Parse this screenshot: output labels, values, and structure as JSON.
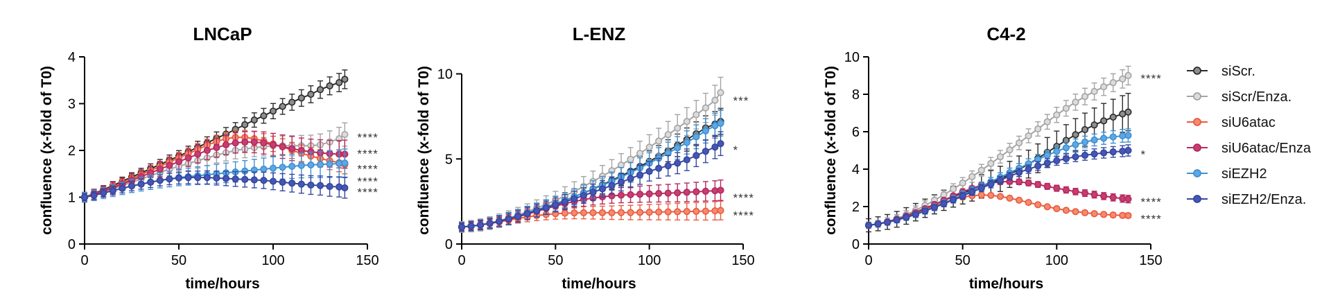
{
  "chart_data": [
    {
      "type": "line",
      "title": "LNCaP",
      "xlabel": "time/hours",
      "ylabel": "confluence (x-fold of T0)",
      "xlim": [
        0,
        150
      ],
      "ylim": [
        0,
        4
      ],
      "xticks": [
        0,
        50,
        100,
        150
      ],
      "yticks": [
        0,
        1,
        2,
        3,
        4
      ],
      "x": [
        0,
        5,
        10,
        15,
        20,
        25,
        30,
        35,
        40,
        45,
        50,
        55,
        60,
        65,
        70,
        75,
        80,
        85,
        90,
        95,
        100,
        105,
        110,
        115,
        120,
        125,
        130,
        135,
        138
      ],
      "series": [
        {
          "name": "siScr.",
          "values": [
            1.0,
            1.08,
            1.16,
            1.25,
            1.34,
            1.43,
            1.52,
            1.61,
            1.7,
            1.79,
            1.88,
            1.97,
            2.07,
            2.16,
            2.26,
            2.35,
            2.45,
            2.55,
            2.65,
            2.74,
            2.84,
            2.94,
            3.03,
            3.12,
            3.2,
            3.3,
            3.38,
            3.45,
            3.52
          ],
          "error": 0.2
        },
        {
          "name": "siScr/Enza.",
          "values": [
            1.0,
            1.05,
            1.11,
            1.18,
            1.25,
            1.32,
            1.39,
            1.46,
            1.53,
            1.6,
            1.66,
            1.72,
            1.78,
            1.84,
            1.9,
            1.95,
            2.0,
            2.03,
            2.06,
            2.08,
            2.1,
            2.1,
            2.1,
            2.1,
            2.1,
            2.12,
            2.18,
            2.25,
            2.34
          ],
          "error": 0.25
        },
        {
          "name": "siU6atac",
          "values": [
            1.0,
            1.07,
            1.14,
            1.22,
            1.3,
            1.39,
            1.48,
            1.57,
            1.66,
            1.75,
            1.84,
            1.93,
            2.02,
            2.11,
            2.19,
            2.25,
            2.28,
            2.28,
            2.25,
            2.2,
            2.14,
            2.08,
            2.0,
            1.94,
            1.88,
            1.83,
            1.78,
            1.74,
            1.7
          ],
          "error": 0.2
        },
        {
          "name": "siU6atac/Enza",
          "values": [
            1.0,
            1.06,
            1.13,
            1.2,
            1.28,
            1.36,
            1.44,
            1.52,
            1.6,
            1.68,
            1.76,
            1.84,
            1.92,
            2.0,
            2.06,
            2.12,
            2.16,
            2.18,
            2.18,
            2.16,
            2.12,
            2.08,
            2.04,
            2.0,
            1.97,
            1.95,
            1.93,
            1.92,
            1.92
          ],
          "error": 0.3
        },
        {
          "name": "siEZH2",
          "values": [
            1.0,
            1.04,
            1.09,
            1.14,
            1.19,
            1.24,
            1.28,
            1.32,
            1.36,
            1.39,
            1.42,
            1.44,
            1.46,
            1.48,
            1.5,
            1.52,
            1.54,
            1.56,
            1.58,
            1.6,
            1.62,
            1.64,
            1.66,
            1.68,
            1.69,
            1.7,
            1.71,
            1.72,
            1.73
          ],
          "error": 0.3
        },
        {
          "name": "siEZH2/Enza.",
          "values": [
            1.0,
            1.04,
            1.09,
            1.14,
            1.19,
            1.24,
            1.28,
            1.32,
            1.36,
            1.39,
            1.41,
            1.42,
            1.42,
            1.42,
            1.41,
            1.4,
            1.39,
            1.38,
            1.37,
            1.36,
            1.34,
            1.32,
            1.3,
            1.28,
            1.26,
            1.25,
            1.23,
            1.22,
            1.2
          ],
          "error": 0.22
        }
      ],
      "annotations": [
        {
          "text": "****",
          "y": 2.34
        },
        {
          "text": "****",
          "y": 1.99
        },
        {
          "text": "****",
          "y": 1.67
        },
        {
          "text": "****",
          "y": 1.4
        },
        {
          "text": "****",
          "y": 1.17
        }
      ]
    },
    {
      "type": "line",
      "title": "L-ENZ",
      "xlabel": "time/hours",
      "ylabel": "confluence (x-fold of T0)",
      "xlim": [
        0,
        150
      ],
      "ylim": [
        0,
        11
      ],
      "xticks": [
        0,
        50,
        100,
        150
      ],
      "yticks": [
        0,
        5,
        10
      ],
      "x": [
        0,
        5,
        10,
        15,
        20,
        25,
        30,
        35,
        40,
        45,
        50,
        55,
        60,
        65,
        70,
        75,
        80,
        85,
        90,
        95,
        100,
        105,
        110,
        115,
        120,
        125,
        130,
        135,
        138
      ],
      "series": [
        {
          "name": "siScr.",
          "values": [
            1.0,
            1.05,
            1.12,
            1.22,
            1.35,
            1.5,
            1.66,
            1.83,
            2.0,
            2.18,
            2.37,
            2.57,
            2.78,
            3.0,
            3.24,
            3.48,
            3.74,
            4.0,
            4.28,
            4.56,
            4.86,
            5.16,
            5.48,
            5.8,
            6.14,
            6.48,
            6.82,
            7.05,
            7.2
          ],
          "error": 0.75
        },
        {
          "name": "siScr/Enza.",
          "values": [
            1.0,
            1.05,
            1.12,
            1.23,
            1.37,
            1.53,
            1.71,
            1.9,
            2.11,
            2.33,
            2.57,
            2.82,
            3.09,
            3.38,
            3.68,
            3.99,
            4.31,
            4.64,
            4.98,
            5.33,
            5.69,
            6.05,
            6.43,
            6.81,
            7.2,
            7.6,
            8.0,
            8.45,
            8.9
          ],
          "error": 0.9
        },
        {
          "name": "siU6atac",
          "values": [
            1.0,
            1.05,
            1.12,
            1.2,
            1.3,
            1.4,
            1.5,
            1.59,
            1.67,
            1.73,
            1.78,
            1.81,
            1.83,
            1.84,
            1.84,
            1.84,
            1.84,
            1.85,
            1.85,
            1.86,
            1.87,
            1.88,
            1.89,
            1.9,
            1.91,
            1.92,
            1.93,
            1.95,
            1.97
          ],
          "error": 0.55
        },
        {
          "name": "siU6atac/Enza",
          "values": [
            1.0,
            1.05,
            1.12,
            1.21,
            1.32,
            1.45,
            1.6,
            1.76,
            1.92,
            2.08,
            2.23,
            2.37,
            2.5,
            2.61,
            2.7,
            2.77,
            2.83,
            2.87,
            2.9,
            2.93,
            2.95,
            2.97,
            2.99,
            3.01,
            3.04,
            3.07,
            3.1,
            3.13,
            3.16
          ],
          "error": 0.6
        },
        {
          "name": "siEZH2",
          "values": [
            1.0,
            1.05,
            1.12,
            1.22,
            1.35,
            1.49,
            1.65,
            1.82,
            2.0,
            2.18,
            2.37,
            2.57,
            2.78,
            2.99,
            3.22,
            3.45,
            3.69,
            3.94,
            4.2,
            4.47,
            4.75,
            5.04,
            5.34,
            5.65,
            5.97,
            6.3,
            6.65,
            6.95,
            7.1
          ],
          "error": 0.75
        },
        {
          "name": "siEZH2/Enza.",
          "values": [
            1.0,
            1.05,
            1.12,
            1.22,
            1.34,
            1.48,
            1.63,
            1.79,
            1.96,
            2.13,
            2.3,
            2.48,
            2.66,
            2.85,
            3.04,
            3.24,
            3.44,
            3.64,
            3.85,
            4.06,
            4.27,
            4.45,
            4.6,
            4.75,
            4.95,
            5.2,
            5.45,
            5.7,
            5.9
          ],
          "error": 0.7
        }
      ],
      "annotations": [
        {
          "text": "***",
          "y": 8.6
        },
        {
          "text": "*",
          "y": 5.7
        },
        {
          "text": "****",
          "y": 2.9
        },
        {
          "text": "****",
          "y": 1.85
        }
      ]
    },
    {
      "type": "line",
      "title": "C4-2",
      "xlabel": "time/hours",
      "ylabel": "confluence (x-fold of T0)",
      "xlim": [
        0,
        150
      ],
      "ylim": [
        0,
        10
      ],
      "xticks": [
        0,
        50,
        100,
        150
      ],
      "yticks": [
        0,
        2,
        4,
        6,
        8,
        10
      ],
      "x": [
        0,
        5,
        10,
        15,
        20,
        25,
        30,
        35,
        40,
        45,
        50,
        55,
        60,
        65,
        70,
        75,
        80,
        85,
        90,
        95,
        100,
        105,
        110,
        115,
        120,
        125,
        130,
        135,
        138
      ],
      "series": [
        {
          "name": "siScr.",
          "values": [
            1.0,
            1.08,
            1.18,
            1.32,
            1.5,
            1.7,
            1.91,
            2.12,
            2.33,
            2.53,
            2.72,
            2.9,
            3.08,
            3.27,
            3.48,
            3.72,
            3.98,
            4.27,
            4.58,
            4.9,
            5.22,
            5.54,
            5.84,
            6.11,
            6.36,
            6.58,
            6.78,
            6.95,
            7.05
          ],
          "error": 1.0
        },
        {
          "name": "siScr/Enza.",
          "values": [
            1.0,
            1.08,
            1.2,
            1.36,
            1.56,
            1.8,
            2.06,
            2.34,
            2.63,
            2.94,
            3.26,
            3.6,
            3.94,
            4.3,
            4.66,
            5.03,
            5.4,
            5.78,
            6.15,
            6.53,
            6.9,
            7.25,
            7.58,
            7.88,
            8.15,
            8.4,
            8.62,
            8.82,
            9.0
          ],
          "error": 0.5
        },
        {
          "name": "siU6atac",
          "values": [
            1.0,
            1.08,
            1.18,
            1.32,
            1.48,
            1.66,
            1.85,
            2.04,
            2.22,
            2.38,
            2.5,
            2.58,
            2.62,
            2.6,
            2.54,
            2.45,
            2.34,
            2.22,
            2.1,
            1.99,
            1.89,
            1.8,
            1.73,
            1.67,
            1.62,
            1.58,
            1.55,
            1.53,
            1.52
          ],
          "error": 0.12
        },
        {
          "name": "siU6atac/Enza",
          "values": [
            1.0,
            1.08,
            1.18,
            1.32,
            1.49,
            1.68,
            1.89,
            2.11,
            2.34,
            2.57,
            2.79,
            2.98,
            3.14,
            3.26,
            3.32,
            3.34,
            3.32,
            3.26,
            3.18,
            3.08,
            2.98,
            2.89,
            2.8,
            2.72,
            2.64,
            2.56,
            2.49,
            2.43,
            2.4
          ],
          "error": 0.2
        },
        {
          "name": "siEZH2",
          "values": [
            1.0,
            1.07,
            1.16,
            1.28,
            1.42,
            1.58,
            1.77,
            1.97,
            2.18,
            2.4,
            2.63,
            2.86,
            3.09,
            3.33,
            3.57,
            3.81,
            4.05,
            4.29,
            4.52,
            4.74,
            4.95,
            5.14,
            5.31,
            5.45,
            5.56,
            5.65,
            5.72,
            5.78,
            5.8
          ],
          "error": 0.35
        },
        {
          "name": "siEZH2/Enza.",
          "values": [
            1.0,
            1.07,
            1.16,
            1.28,
            1.42,
            1.58,
            1.76,
            1.95,
            2.15,
            2.36,
            2.57,
            2.78,
            2.99,
            3.2,
            3.41,
            3.62,
            3.82,
            4.0,
            4.17,
            4.32,
            4.45,
            4.56,
            4.66,
            4.74,
            4.81,
            4.87,
            4.92,
            4.96,
            5.0
          ],
          "error": 0.3
        }
      ],
      "annotations": [
        {
          "text": "****",
          "y": 9.0
        },
        {
          "text": "*",
          "y": 4.95
        },
        {
          "text": "****",
          "y": 2.4
        },
        {
          "text": "****",
          "y": 1.5
        }
      ]
    }
  ],
  "legend": {
    "position": "right",
    "items": [
      {
        "label": "siScr.",
        "color": "#2b2b2b",
        "fill": "#8e8e8e"
      },
      {
        "label": "siScr/Enza.",
        "color": "#a3a3a3",
        "fill": "#dcdcdc"
      },
      {
        "label": "siU6atac",
        "color": "#e85a3d",
        "fill": "#f58a6f"
      },
      {
        "label": "siU6atac/Enza",
        "color": "#b5285c",
        "fill": "#c63d72"
      },
      {
        "label": "siEZH2",
        "color": "#3d8fd1",
        "fill": "#5ea7e3"
      },
      {
        "label": "siEZH2/Enza.",
        "color": "#33469e",
        "fill": "#4656b5"
      }
    ]
  }
}
